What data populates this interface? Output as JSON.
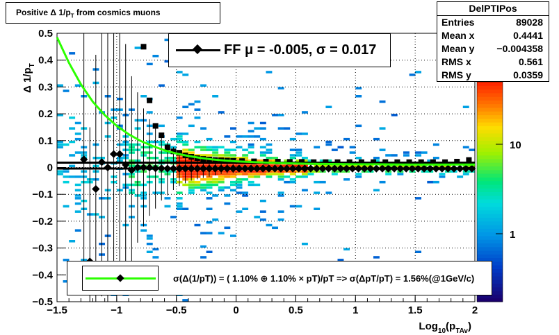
{
  "title": "Positive Δ 1/p_T from cosmics muons",
  "title_main": "Positive Δ 1/p",
  "title_sub": "T",
  "title_tail": " from cosmics muons",
  "stats": {
    "name": "DelPTIPos",
    "rows": [
      {
        "label": "Entries",
        "value": "89028"
      },
      {
        "label": "Mean x",
        "value": "0.4441"
      },
      {
        "label": "Mean y",
        "value": "−0.004358"
      },
      {
        "label": "RMS x",
        "value": "0.561"
      },
      {
        "label": "RMS y",
        "value": "0.0359"
      }
    ]
  },
  "fit_legend": "FF μ = -0.005, σ =   0.017",
  "resolution_legend": "σ(Δ(1/pT)) = ( 1.10% ⊕  1.10% × pT)/pT => σ(ΔpT/pT) =  1.56%(@1GeV/c)",
  "colors": {
    "fit_curve": "#2bff00",
    "markers": "#000000",
    "grid": "#000000"
  },
  "chart_data": {
    "type": "heatmap",
    "xlabel": "Log10(pTAv)",
    "ylabel": "Δ 1/pT",
    "xlim": [
      -1.5,
      2
    ],
    "ylim": [
      -0.5,
      0.5
    ],
    "x_ticks": [
      "−1.5",
      "−1",
      "−0.5",
      "0",
      "0.5",
      "1",
      "1.5",
      "2"
    ],
    "y_ticks": [
      "−0.5",
      "−0.4",
      "−0.3",
      "−0.2",
      "−0.1",
      "0",
      "0.1",
      "0.2",
      "0.3",
      "0.4",
      "0.5"
    ],
    "colorbar_ticks": [
      "1",
      "10"
    ],
    "colorbar_log": true,
    "grid": true,
    "series": [
      {
        "marker": "square",
        "x": [
          -0.775,
          -0.725,
          -0.675,
          -0.625,
          -0.575,
          -0.525,
          -0.475,
          -0.425,
          -0.375,
          -0.325,
          -0.275,
          -0.225,
          -0.175,
          -0.125,
          -0.075,
          -0.025,
          0.05,
          0.15,
          0.25,
          0.35,
          0.45,
          0.55,
          0.65,
          0.75,
          0.85,
          0.95,
          1.05,
          1.15,
          1.25,
          1.35,
          1.45,
          1.55,
          1.65,
          1.75,
          1.85,
          1.95
        ],
        "y": [
          0.45,
          0.25,
          0.155,
          0.12,
          0.075,
          0.06,
          0.055,
          0.045,
          0.04,
          0.035,
          0.032,
          0.03,
          0.028,
          0.027,
          0.026,
          0.025,
          0.024,
          0.023,
          0.022,
          0.022,
          0.021,
          0.021,
          0.02,
          0.02,
          0.02,
          0.02,
          0.02,
          0.02,
          0.02,
          0.02,
          0.02,
          0.02,
          0.02,
          0.02,
          0.022,
          0.028
        ]
      },
      {
        "marker": "diamond",
        "x": [
          -1.275,
          -1.225,
          -1.175,
          -1.125,
          -1.075,
          -1.025,
          -0.975,
          -0.925,
          -0.875,
          -0.825,
          -0.775,
          -0.725,
          -0.675,
          -0.625,
          -0.575,
          -0.525,
          -0.475,
          -0.425,
          -0.375,
          -0.325,
          -0.275,
          -0.225,
          -0.175,
          -0.125,
          -0.075,
          -0.025,
          0.025,
          0.075,
          0.125,
          0.175,
          0.225,
          0.275,
          0.325,
          0.375,
          0.425,
          0.475,
          0.525,
          0.575,
          0.625,
          0.675,
          0.725,
          0.775,
          0.825,
          0.875,
          0.925,
          0.975,
          1.025,
          1.075,
          1.125,
          1.175,
          1.225,
          1.275,
          1.325,
          1.375,
          1.425,
          1.475,
          1.525,
          1.575,
          1.625,
          1.675,
          1.725,
          1.775,
          1.825,
          1.875,
          1.925,
          1.975
        ],
        "y": [
          0.03,
          -0.35,
          -0.08,
          0.02,
          0.0,
          0.05,
          0.05,
          0.01,
          -0.01,
          0.0,
          0.0,
          0.0,
          -0.003,
          -0.003,
          -0.004,
          -0.004,
          -0.004,
          -0.004,
          -0.004,
          -0.004,
          -0.004,
          -0.004,
          -0.004,
          -0.004,
          -0.004,
          -0.004,
          -0.004,
          -0.004,
          -0.004,
          -0.004,
          -0.004,
          -0.004,
          -0.004,
          -0.004,
          -0.004,
          -0.004,
          -0.004,
          -0.004,
          -0.004,
          -0.004,
          -0.004,
          -0.004,
          -0.004,
          -0.004,
          -0.004,
          -0.004,
          -0.004,
          -0.004,
          -0.004,
          -0.004,
          -0.004,
          -0.004,
          -0.004,
          -0.004,
          -0.004,
          -0.004,
          -0.004,
          -0.004,
          -0.004,
          -0.004,
          -0.004,
          -0.004,
          -0.004,
          -0.004,
          -0.004,
          -0.004
        ],
        "yerr": [
          0.5,
          0.5,
          0.5,
          0.5,
          0.5,
          0.5,
          0.5,
          0.45,
          0.35,
          0.28,
          0.22,
          0.18,
          0.15,
          0.12,
          0.1,
          0.08,
          0.065,
          0.055,
          0.045,
          0.04,
          0.035,
          0.03,
          0.025,
          0.02,
          0.018,
          0.016,
          0.014,
          0.012,
          0.01,
          0.01,
          0.009,
          0.008,
          0.008,
          0.007,
          0.007,
          0.006,
          0.006,
          0.006,
          0.005,
          0.005,
          0.005,
          0.005,
          0.005,
          0.005,
          0.005,
          0.005,
          0.005,
          0.005,
          0.005,
          0.005,
          0.005,
          0.005,
          0.005,
          0.005,
          0.005,
          0.005,
          0.005,
          0.005,
          0.005,
          0.005,
          0.005,
          0.005,
          0.005,
          0.005,
          0.005,
          0.005
        ]
      },
      {
        "marker": "line",
        "x": [
          -1.5,
          -1.4,
          -1.3,
          -1.2,
          -1.1,
          -1.0,
          -0.9,
          -0.8,
          -0.7,
          -0.6,
          -0.5,
          -0.4,
          -0.3,
          -0.2,
          -0.1,
          0.0,
          0.2,
          0.4,
          0.6,
          0.8,
          1.0,
          1.2,
          1.4,
          1.6,
          1.8,
          2.0
        ],
        "y": [
          0.485,
          0.39,
          0.31,
          0.245,
          0.195,
          0.155,
          0.124,
          0.099,
          0.08,
          0.064,
          0.052,
          0.043,
          0.036,
          0.03,
          0.026,
          0.023,
          0.019,
          0.016,
          0.014,
          0.013,
          0.012,
          0.012,
          0.011,
          0.011,
          0.011,
          0.011
        ]
      }
    ]
  }
}
